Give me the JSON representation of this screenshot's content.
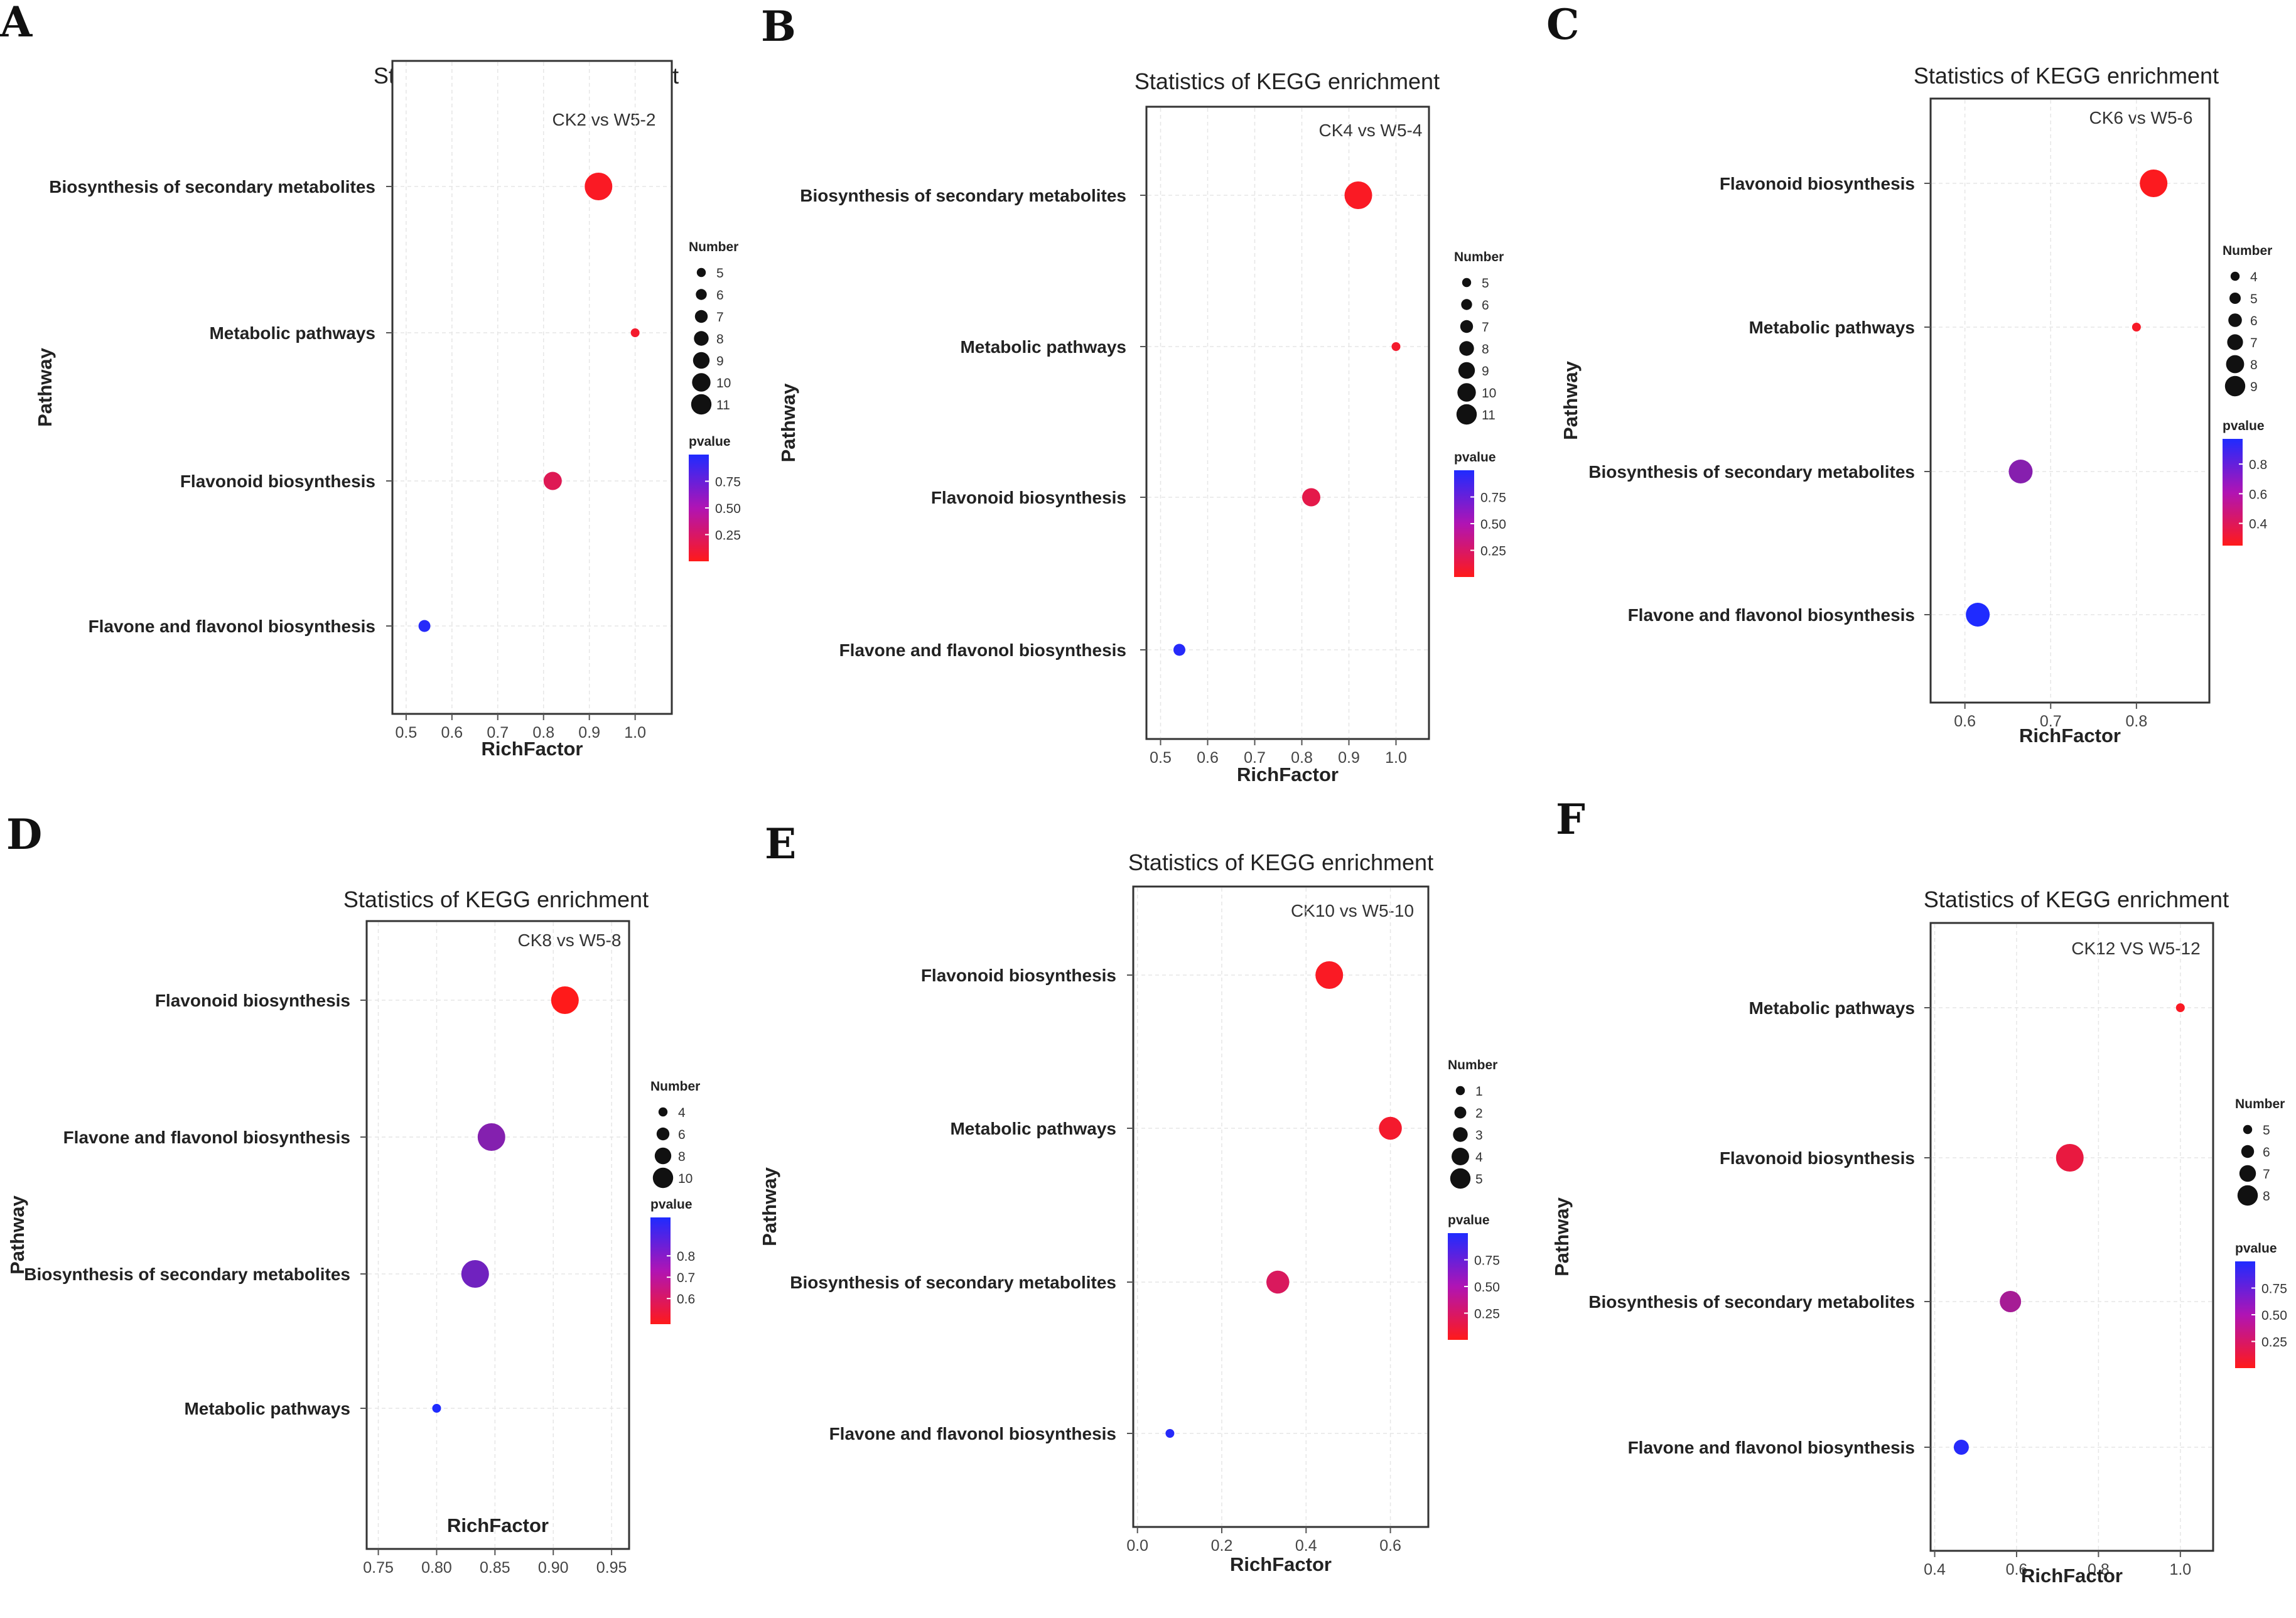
{
  "legend_labels": {
    "size": "Number",
    "color": "pvalue"
  },
  "colors": {
    "low_p": "#ff1a1a",
    "mid_p": "#c8187a",
    "high_p": "#1f2bff"
  },
  "chart_data": [
    {
      "panel": "A",
      "type": "scatter",
      "title": "Statistics of KEGG enrichment",
      "subtitle": "CK2 vs W5-2",
      "xlabel": "RichFactor",
      "ylabel": "Pathway",
      "xlim": [
        0.47,
        1.08
      ],
      "xticks": [
        {
          "v": 0.5,
          "t": "0.5"
        },
        {
          "v": 0.6,
          "t": "0.6"
        },
        {
          "v": 0.7,
          "t": "0.7"
        },
        {
          "v": 0.8,
          "t": "0.8"
        },
        {
          "v": 0.9,
          "t": "0.9"
        },
        {
          "v": 1.0,
          "t": "1.0"
        }
      ],
      "categories": [
        "Biosynthesis of secondary metabolites",
        "Metabolic pathways",
        "Flavonoid biosynthesis",
        "Flavone and flavonol biosynthesis"
      ],
      "points": [
        {
          "pathway": "Biosynthesis of secondary metabolites",
          "rich_factor": 0.92,
          "number": 11,
          "pvalue": 0.05
        },
        {
          "pathway": "Metabolic pathways",
          "rich_factor": 1.0,
          "number": 5,
          "pvalue": 0.1
        },
        {
          "pathway": "Flavonoid biosynthesis",
          "rich_factor": 0.82,
          "number": 8,
          "pvalue": 0.3
        },
        {
          "pathway": "Flavone and flavonol biosynthesis",
          "rich_factor": 0.54,
          "number": 6,
          "pvalue": 0.98
        }
      ],
      "size_legend": [
        {
          "v": 5,
          "t": "5"
        },
        {
          "v": 6,
          "t": "6"
        },
        {
          "v": 7,
          "t": "7"
        },
        {
          "v": 8,
          "t": "8"
        },
        {
          "v": 9,
          "t": "9"
        },
        {
          "v": 10,
          "t": "10"
        },
        {
          "v": 11,
          "t": "11"
        }
      ],
      "size_range": [
        5,
        11
      ],
      "pvalue_range": [
        0.0,
        1.0
      ],
      "pvalue_ticks": [
        {
          "v": 0.75,
          "t": "0.75"
        },
        {
          "v": 0.5,
          "t": "0.50"
        },
        {
          "v": 0.25,
          "t": "0.25"
        }
      ]
    },
    {
      "panel": "B",
      "type": "scatter",
      "title": "Statistics of KEGG enrichment",
      "subtitle": "CK4 vs W5-4",
      "xlabel": "RichFactor",
      "ylabel": "Pathway",
      "xlim": [
        0.47,
        1.07
      ],
      "xticks": [
        {
          "v": 0.5,
          "t": "0.5"
        },
        {
          "v": 0.6,
          "t": "0.6"
        },
        {
          "v": 0.7,
          "t": "0.7"
        },
        {
          "v": 0.8,
          "t": "0.8"
        },
        {
          "v": 0.9,
          "t": "0.9"
        },
        {
          "v": 1.0,
          "t": "1.0"
        }
      ],
      "categories": [
        "Biosynthesis of secondary metabolites",
        "Metabolic pathways",
        "Flavonoid biosynthesis",
        "Flavone and flavonol biosynthesis"
      ],
      "points": [
        {
          "pathway": "Biosynthesis of secondary metabolites",
          "rich_factor": 0.92,
          "number": 11,
          "pvalue": 0.05
        },
        {
          "pathway": "Metabolic pathways",
          "rich_factor": 1.0,
          "number": 5,
          "pvalue": 0.1
        },
        {
          "pathway": "Flavonoid biosynthesis",
          "rich_factor": 0.82,
          "number": 8,
          "pvalue": 0.25
        },
        {
          "pathway": "Flavone and flavonol biosynthesis",
          "rich_factor": 0.54,
          "number": 6,
          "pvalue": 0.98
        }
      ],
      "size_legend": [
        {
          "v": 5,
          "t": "5"
        },
        {
          "v": 6,
          "t": "6"
        },
        {
          "v": 7,
          "t": "7"
        },
        {
          "v": 8,
          "t": "8"
        },
        {
          "v": 9,
          "t": "9"
        },
        {
          "v": 10,
          "t": "10"
        },
        {
          "v": 11,
          "t": "11"
        }
      ],
      "size_range": [
        5,
        11
      ],
      "pvalue_range": [
        0.0,
        1.0
      ],
      "pvalue_ticks": [
        {
          "v": 0.75,
          "t": "0.75"
        },
        {
          "v": 0.5,
          "t": "0.50"
        },
        {
          "v": 0.25,
          "t": "0.25"
        }
      ]
    },
    {
      "panel": "C",
      "type": "scatter",
      "title": "Statistics of KEGG enrichment",
      "subtitle": "CK6 vs W5-6",
      "xlabel": "RichFactor",
      "ylabel": "Pathway",
      "xlim": [
        0.56,
        0.885
      ],
      "xticks": [
        {
          "v": 0.6,
          "t": "0.6"
        },
        {
          "v": 0.7,
          "t": "0.7"
        },
        {
          "v": 0.8,
          "t": "0.8"
        }
      ],
      "categories": [
        "Flavonoid biosynthesis",
        "Metabolic pathways",
        "Biosynthesis of secondary metabolites",
        "Flavone and flavonol biosynthesis"
      ],
      "points": [
        {
          "pathway": "Flavonoid biosynthesis",
          "rich_factor": 0.82,
          "number": 9,
          "pvalue": 0.27
        },
        {
          "pathway": "Metabolic pathways",
          "rich_factor": 0.8,
          "number": 4,
          "pvalue": 0.3
        },
        {
          "pathway": "Biosynthesis of secondary metabolites",
          "rich_factor": 0.665,
          "number": 8,
          "pvalue": 0.75
        },
        {
          "pathway": "Flavone and flavonol biosynthesis",
          "rich_factor": 0.615,
          "number": 8,
          "pvalue": 0.97
        }
      ],
      "size_legend": [
        {
          "v": 4,
          "t": "4"
        },
        {
          "v": 5,
          "t": "5"
        },
        {
          "v": 6,
          "t": "6"
        },
        {
          "v": 7,
          "t": "7"
        },
        {
          "v": 8,
          "t": "8"
        },
        {
          "v": 9,
          "t": "9"
        }
      ],
      "size_range": [
        4,
        9
      ],
      "pvalue_range": [
        0.25,
        0.97
      ],
      "pvalue_ticks": [
        {
          "v": 0.8,
          "t": "0.8"
        },
        {
          "v": 0.6,
          "t": "0.6"
        },
        {
          "v": 0.4,
          "t": "0.4"
        }
      ]
    },
    {
      "panel": "D",
      "type": "scatter",
      "title": "Statistics of KEGG enrichment",
      "subtitle": "CK8 vs W5-8",
      "xlabel": "RichFactor",
      "ylabel": "Pathway",
      "xlim": [
        0.74,
        0.965
      ],
      "xticks": [
        {
          "v": 0.75,
          "t": "0.75"
        },
        {
          "v": 0.8,
          "t": "0.80"
        },
        {
          "v": 0.85,
          "t": "0.85"
        },
        {
          "v": 0.9,
          "t": "0.90"
        },
        {
          "v": 0.95,
          "t": "0.95"
        }
      ],
      "categories": [
        "Flavonoid biosynthesis",
        "Flavone and flavonol biosynthesis",
        "Biosynthesis of secondary metabolites",
        "Metabolic pathways"
      ],
      "points": [
        {
          "pathway": "Flavonoid biosynthesis",
          "rich_factor": 0.91,
          "number": 10,
          "pvalue": 0.48
        },
        {
          "pathway": "Flavone and flavonol biosynthesis",
          "rich_factor": 0.847,
          "number": 10,
          "pvalue": 0.83
        },
        {
          "pathway": "Biosynthesis of secondary metabolites",
          "rich_factor": 0.833,
          "number": 10,
          "pvalue": 0.86
        },
        {
          "pathway": "Metabolic pathways",
          "rich_factor": 0.8,
          "number": 4,
          "pvalue": 0.98
        }
      ],
      "size_legend": [
        {
          "v": 4,
          "t": "4"
        },
        {
          "v": 6,
          "t": "6"
        },
        {
          "v": 8,
          "t": "8"
        },
        {
          "v": 10,
          "t": "10"
        }
      ],
      "size_range": [
        4,
        10
      ],
      "pvalue_range": [
        0.48,
        0.98
      ],
      "pvalue_ticks": [
        {
          "v": 0.8,
          "t": "0.8"
        },
        {
          "v": 0.7,
          "t": "0.7"
        },
        {
          "v": 0.6,
          "t": "0.6"
        }
      ]
    },
    {
      "panel": "E",
      "type": "scatter",
      "title": "Statistics of KEGG enrichment",
      "subtitle": "CK10 vs W5-10",
      "xlabel": "RichFactor",
      "ylabel": "Pathway",
      "xlim": [
        -0.01,
        0.69
      ],
      "xticks": [
        {
          "v": 0.0,
          "t": "0.0"
        },
        {
          "v": 0.2,
          "t": "0.2"
        },
        {
          "v": 0.4,
          "t": "0.4"
        },
        {
          "v": 0.6,
          "t": "0.6"
        }
      ],
      "categories": [
        "Flavonoid biosynthesis",
        "Metabolic pathways",
        "Biosynthesis of secondary metabolites",
        "Flavone and flavonol biosynthesis"
      ],
      "points": [
        {
          "pathway": "Flavonoid biosynthesis",
          "rich_factor": 0.455,
          "number": 5,
          "pvalue": 0.05
        },
        {
          "pathway": "Metabolic pathways",
          "rich_factor": 0.6,
          "number": 4,
          "pvalue": 0.1
        },
        {
          "pathway": "Biosynthesis of secondary metabolites",
          "rich_factor": 0.333,
          "number": 4,
          "pvalue": 0.35
        },
        {
          "pathway": "Flavone and flavonol biosynthesis",
          "rich_factor": 0.077,
          "number": 1,
          "pvalue": 0.98
        }
      ],
      "size_legend": [
        {
          "v": 1,
          "t": "1"
        },
        {
          "v": 2,
          "t": "2"
        },
        {
          "v": 3,
          "t": "3"
        },
        {
          "v": 4,
          "t": "4"
        },
        {
          "v": 5,
          "t": "5"
        }
      ],
      "size_range": [
        1,
        5
      ],
      "pvalue_range": [
        0.0,
        1.0
      ],
      "pvalue_ticks": [
        {
          "v": 0.75,
          "t": "0.75"
        },
        {
          "v": 0.5,
          "t": "0.50"
        },
        {
          "v": 0.25,
          "t": "0.25"
        }
      ]
    },
    {
      "panel": "F",
      "type": "scatter",
      "title": "Statistics of KEGG enrichment",
      "subtitle": "CK12 VS W5-12",
      "xlabel": "RichFactor",
      "ylabel": "Pathway",
      "xlim": [
        0.39,
        1.08
      ],
      "xticks": [
        {
          "v": 0.4,
          "t": "0.4"
        },
        {
          "v": 0.6,
          "t": "0.6"
        },
        {
          "v": 0.8,
          "t": "0.8"
        },
        {
          "v": 1.0,
          "t": "1.0"
        }
      ],
      "categories": [
        "Metabolic pathways",
        "Flavonoid biosynthesis",
        "Biosynthesis of secondary metabolites",
        "Flavone and flavonol biosynthesis"
      ],
      "points": [
        {
          "pathway": "Metabolic pathways",
          "rich_factor": 1.0,
          "number": 5,
          "pvalue": 0.05
        },
        {
          "pathway": "Flavonoid biosynthesis",
          "rich_factor": 0.73,
          "number": 8,
          "pvalue": 0.2
        },
        {
          "pathway": "Biosynthesis of secondary metabolites",
          "rich_factor": 0.585,
          "number": 7,
          "pvalue": 0.6
        },
        {
          "pathway": "Flavone and flavonol biosynthesis",
          "rich_factor": 0.465,
          "number": 6,
          "pvalue": 0.98
        }
      ],
      "size_legend": [
        {
          "v": 5,
          "t": "5"
        },
        {
          "v": 6,
          "t": "6"
        },
        {
          "v": 7,
          "t": "7"
        },
        {
          "v": 8,
          "t": "8"
        }
      ],
      "size_range": [
        5,
        8
      ],
      "pvalue_range": [
        0.0,
        1.0
      ],
      "pvalue_ticks": [
        {
          "v": 0.75,
          "t": "0.75"
        },
        {
          "v": 0.5,
          "t": "0.50"
        },
        {
          "v": 0.25,
          "t": "0.25"
        }
      ]
    }
  ]
}
